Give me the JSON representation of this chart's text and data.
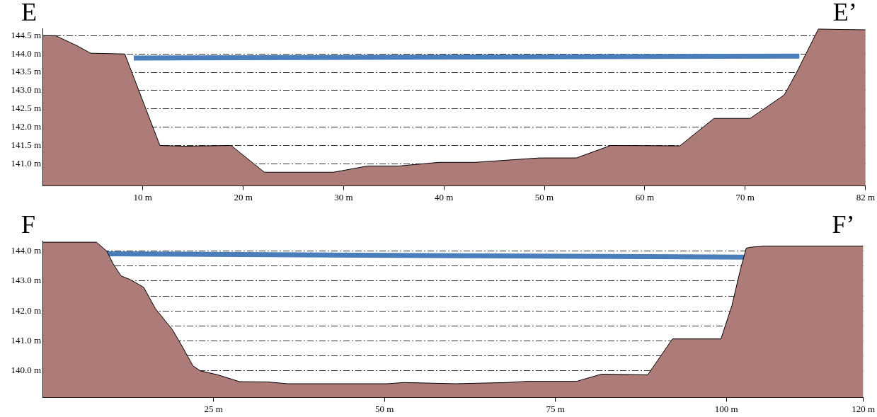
{
  "chart_data": [
    {
      "type": "area",
      "title": "E",
      "annotations": [
        "E’"
      ],
      "grid": "y",
      "legend": false,
      "marker": "none",
      "line_style": "solid",
      "xlim": [
        0,
        82
      ],
      "xticks": [
        {
          "value": 10,
          "label": "10 m"
        },
        {
          "value": 20,
          "label": "20 m"
        },
        {
          "value": 30,
          "label": "30 m"
        },
        {
          "value": 40,
          "label": "40 m"
        },
        {
          "value": 50,
          "label": "50 m"
        },
        {
          "value": 60,
          "label": "60 m"
        },
        {
          "value": 70,
          "label": "70 m"
        },
        {
          "value": 82,
          "label": "82 m"
        }
      ],
      "ylim": [
        140.4,
        144.7
      ],
      "yticks": [
        {
          "value": 141,
          "label": "141.0 m"
        },
        {
          "value": 141.5,
          "label": "141.5 m"
        },
        {
          "value": 142,
          "label": "142.0 m"
        },
        {
          "value": 142.5,
          "label": "142.5 m"
        },
        {
          "value": 143,
          "label": "143.0 m"
        },
        {
          "value": 143.5,
          "label": "143.5 m"
        },
        {
          "value": 144,
          "label": "144.0 m"
        },
        {
          "value": 144.5,
          "label": "144.5 m"
        }
      ],
      "series": [
        {
          "type": "area",
          "color": "#ae7c78",
          "x": [
            0,
            1.3,
            3.4,
            4.8,
            8.2,
            11.7,
            14.1,
            18.8,
            22.1,
            29,
            32.4,
            35.5,
            39.5,
            43.1,
            49.5,
            53.2,
            56.6,
            63.5,
            66.9,
            70.5,
            73.9,
            75.1,
            77.3,
            79.7,
            82
          ],
          "values": [
            144.5,
            144.5,
            144.23,
            144.02,
            144,
            141.5,
            141.48,
            141.5,
            140.77,
            140.77,
            140.94,
            140.94,
            141.04,
            141.04,
            141.16,
            141.16,
            141.5,
            141.49,
            142.24,
            142.24,
            142.88,
            143.48,
            144.68,
            144.67,
            144.66
          ]
        },
        {
          "type": "line",
          "color": "#4a7ebb",
          "x": [
            9.1,
            75.4
          ],
          "values": [
            143.89,
            143.94
          ]
        }
      ]
    },
    {
      "type": "area",
      "title": "F",
      "annotations": [
        "F’"
      ],
      "grid": "y",
      "legend": false,
      "marker": "none",
      "line_style": "solid",
      "xlim": [
        0,
        120
      ],
      "xticks": [
        {
          "value": 25,
          "label": "25 m"
        },
        {
          "value": 50,
          "label": "50 m"
        },
        {
          "value": 75,
          "label": "75 m"
        },
        {
          "value": 100,
          "label": "100 m"
        },
        {
          "value": 120,
          "label": "120 m"
        }
      ],
      "ylim": [
        139.1,
        144.35
      ],
      "yticks": [
        {
          "value": 140,
          "label": "140.0 m"
        },
        {
          "value": 140.5,
          "label": null
        },
        {
          "value": 141,
          "label": "141.0 m"
        },
        {
          "value": 141.5,
          "label": null
        },
        {
          "value": 142,
          "label": "142.0 m"
        },
        {
          "value": 142.5,
          "label": null
        },
        {
          "value": 143,
          "label": "143.0 m"
        },
        {
          "value": 143.5,
          "label": null
        },
        {
          "value": 144,
          "label": "144.0 m"
        }
      ],
      "series": [
        {
          "type": "area",
          "color": "#ae7c78",
          "x": [
            0,
            7.9,
            9.4,
            10.4,
            11.5,
            12.9,
            14.8,
            16.5,
            19,
            20.4,
            22,
            23.1,
            25.6,
            28.8,
            32.9,
            35.8,
            50.4,
            52.9,
            60.4,
            67.9,
            70.8,
            78.1,
            81.7,
            88.5,
            92.1,
            99.2,
            100.8,
            102.1,
            102.9,
            103.5,
            105.6,
            120
          ],
          "values": [
            144.3,
            144.3,
            144,
            143.55,
            143.17,
            143.04,
            142.79,
            142.08,
            141.37,
            140.82,
            140.16,
            139.99,
            139.86,
            139.63,
            139.62,
            139.56,
            139.56,
            139.6,
            139.56,
            139.6,
            139.64,
            139.64,
            139.88,
            139.86,
            141.06,
            141.06,
            142.18,
            143.44,
            144.1,
            144.13,
            144.17,
            144.17
          ]
        },
        {
          "type": "line",
          "color": "#4a7ebb",
          "x": [
            9.4,
            102.8
          ],
          "values": [
            143.91,
            143.8
          ]
        }
      ]
    }
  ]
}
